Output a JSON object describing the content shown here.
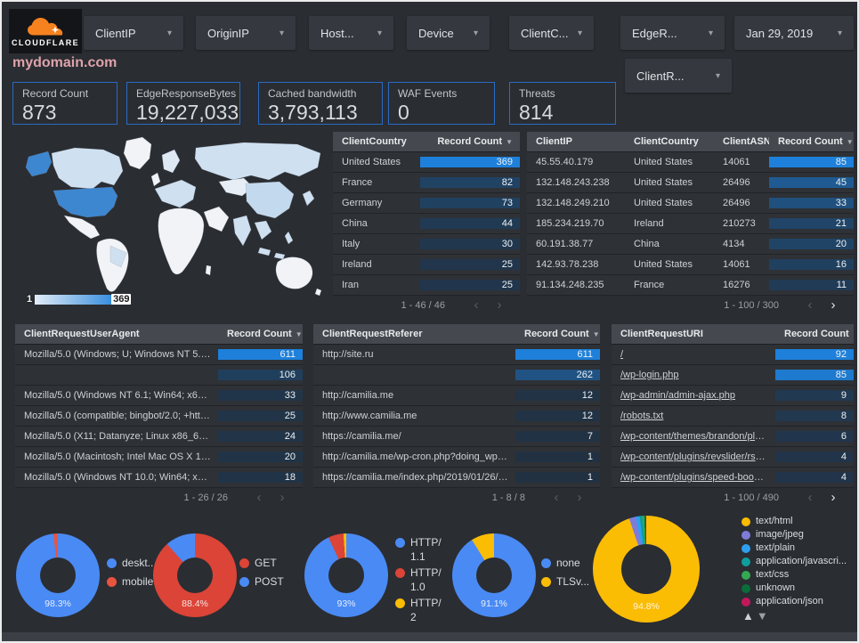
{
  "header": {
    "brand": "CLOUDFLARE",
    "filters": [
      "ClientIP",
      "OriginIP",
      "Host...",
      "Device",
      "ClientC...",
      "EdgeR..."
    ],
    "date_filter": "Jan 29, 2019",
    "filter_row2": "ClientR..."
  },
  "page_title": "mydomain.com",
  "scorecards": [
    {
      "label": "Record Count",
      "value": "873"
    },
    {
      "label": "EdgeResponseBytes",
      "value": "19,227,033"
    },
    {
      "label": "Cached bandwidth",
      "value": "3,793,113"
    },
    {
      "label": "WAF Events",
      "value": "0"
    },
    {
      "label": "Threats",
      "value": "814"
    }
  ],
  "map": {
    "legend_min": "1",
    "legend_max": "369"
  },
  "colors": {
    "heat_low": "#213142",
    "heat_high": "#1e80da",
    "accent_blue": "#4a8af4",
    "accent_red": "#db4437",
    "accent_yellow": "#fbbc04"
  },
  "tables": {
    "client_country": {
      "columns": [
        "ClientCountry",
        "Record Count"
      ],
      "rows": [
        [
          "United States",
          369
        ],
        [
          "France",
          82
        ],
        [
          "Germany",
          73
        ],
        [
          "China",
          44
        ],
        [
          "Italy",
          30
        ],
        [
          "Ireland",
          25
        ],
        [
          "Iran",
          25
        ]
      ],
      "max": 369,
      "pagination": {
        "label": "1 - 46 / 46",
        "prev_enabled": false,
        "next_enabled": false
      }
    },
    "client_ip": {
      "columns": [
        "ClientIP",
        "ClientCountry",
        "ClientASN",
        "Record Count"
      ],
      "rows": [
        [
          "45.55.40.179",
          "United States",
          "14061",
          85
        ],
        [
          "132.148.243.238",
          "United States",
          "26496",
          45
        ],
        [
          "132.148.249.210",
          "United States",
          "26496",
          33
        ],
        [
          "185.234.219.70",
          "Ireland",
          "210273",
          21
        ],
        [
          "60.191.38.77",
          "China",
          "4134",
          20
        ],
        [
          "142.93.78.238",
          "United States",
          "14061",
          16
        ],
        [
          "91.134.248.235",
          "France",
          "16276",
          11
        ]
      ],
      "max": 85,
      "pagination": {
        "label": "1 - 100 / 300",
        "prev_enabled": false,
        "next_enabled": true
      }
    },
    "user_agent": {
      "columns": [
        "ClientRequestUserAgent",
        "Record Count"
      ],
      "rows": [
        [
          "Mozilla/5.0 (Windows; U; Windows NT 5.1; en-U...",
          611
        ],
        [
          "",
          106
        ],
        [
          "Mozilla/5.0 (Windows NT 6.1; Win64; x64; rv:64...",
          33
        ],
        [
          "Mozilla/5.0 (compatible; bingbot/2.0; +http://w...",
          25
        ],
        [
          "Mozilla/5.0 (X11; Datanyze; Linux x86_64) Appl...",
          24
        ],
        [
          "Mozilla/5.0 (Macintosh; Intel Mac OS X 10.11; r...",
          20
        ],
        [
          "Mozilla/5.0 (Windows NT 10.0; Win64; x64) App...",
          18
        ]
      ],
      "max": 611,
      "pagination": {
        "label": "1 - 26 / 26",
        "prev_enabled": false,
        "next_enabled": false
      }
    },
    "referer": {
      "columns": [
        "ClientRequestReferer",
        "Record Count"
      ],
      "rows": [
        [
          "http://site.ru",
          611
        ],
        [
          "",
          262
        ],
        [
          "http://camilia.me",
          12
        ],
        [
          "http://www.camilia.me",
          12
        ],
        [
          "https://camilia.me/",
          7
        ],
        [
          "http://camilia.me/wp-cron.php?doing_wp_cron...",
          1
        ],
        [
          "https://camilia.me/index.php/2019/01/26/stor...",
          1
        ]
      ],
      "max": 611,
      "pagination": {
        "label": "1 - 8 / 8",
        "prev_enabled": false,
        "next_enabled": false
      }
    },
    "request_uri": {
      "columns": [
        "ClientRequestURI",
        "Record Count"
      ],
      "links": true,
      "rows": [
        [
          "/",
          92
        ],
        [
          "/wp-login.php",
          85
        ],
        [
          "/wp-admin/admin-ajax.php",
          9
        ],
        [
          "/robots.txt",
          8
        ],
        [
          "/wp-content/themes/brandon/plu...",
          6
        ],
        [
          "/wp-content/plugins/revslider/rs-p...",
          4
        ],
        [
          "/wp-content/plugins/speed-booste...",
          4
        ]
      ],
      "max": 92,
      "pagination": {
        "label": "1 - 100 / 490",
        "prev_enabled": false,
        "next_enabled": true
      }
    }
  },
  "chart_data": [
    {
      "type": "pie",
      "name": "device-type",
      "center_label": "98.3%",
      "segments": [
        {
          "label": "deskt...",
          "value": 98.3,
          "color": "#4a8af4"
        },
        {
          "label": "mobile",
          "value": 1.7,
          "color": "#e8543f"
        }
      ]
    },
    {
      "type": "pie",
      "name": "http-method",
      "center_label": "88.4%",
      "segments": [
        {
          "label": "GET",
          "value": 88.4,
          "color": "#db4437"
        },
        {
          "label": "POST",
          "value": 11.6,
          "color": "#4a8af4"
        }
      ]
    },
    {
      "type": "pie",
      "name": "http-version",
      "center_label": "93%",
      "segments": [
        {
          "label": "HTTP/1.1",
          "value": 93,
          "color": "#4a8af4"
        },
        {
          "label": "HTTP/1.0",
          "value": 5.9,
          "color": "#db4437"
        },
        {
          "label": "HTTP/2",
          "value": 1.1,
          "color": "#fbbc04"
        }
      ]
    },
    {
      "type": "pie",
      "name": "tls-version",
      "center_label": "91.1%",
      "segments": [
        {
          "label": "none",
          "value": 91.1,
          "color": "#4a8af4"
        },
        {
          "label": "TLSv...",
          "value": 8.9,
          "color": "#fbbc04"
        }
      ]
    },
    {
      "type": "pie",
      "name": "content-type",
      "center_label": "94.8%",
      "segments": [
        {
          "label": "text/html",
          "value": 94.8,
          "color": "#fbbc04"
        },
        {
          "label": "image/jpeg",
          "value": 2.0,
          "color": "#7e7cd8"
        },
        {
          "label": "text/plain",
          "value": 1.2,
          "color": "#2d9ff0"
        },
        {
          "label": "application/javascri...",
          "value": 0.8,
          "color": "#0f9d9d"
        },
        {
          "label": "text/css",
          "value": 0.6,
          "color": "#34a853"
        },
        {
          "label": "unknown",
          "value": 0.4,
          "color": "#0b6e3a"
        },
        {
          "label": "application/json",
          "value": 0.2,
          "color": "#c2185b"
        }
      ]
    }
  ]
}
